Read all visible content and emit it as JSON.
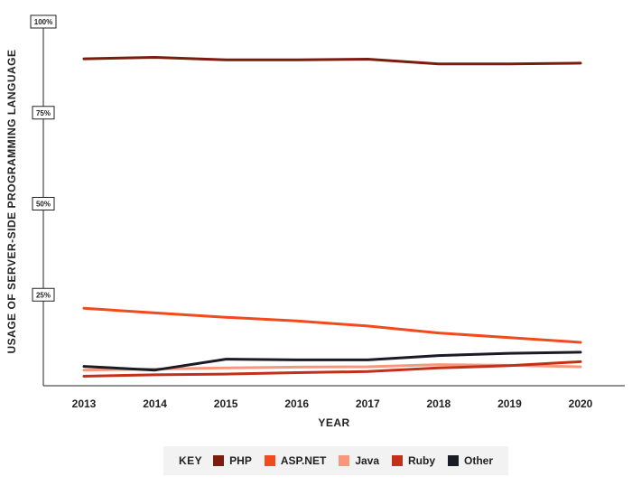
{
  "chart_data": {
    "type": "line",
    "xlabel": "YEAR",
    "ylabel": "USAGE OF SERVER-SIDE PROGRAMMING LANGUAGE",
    "x": [
      "2013",
      "2014",
      "2015",
      "2016",
      "2017",
      "2018",
      "2019",
      "2020"
    ],
    "ylim": [
      0,
      100
    ],
    "y_ticks": [
      {
        "value": 25,
        "label": "25%"
      },
      {
        "value": 50,
        "label": "50%"
      },
      {
        "value": 75,
        "label": "75%"
      },
      {
        "value": 100,
        "label": "100%"
      }
    ],
    "grid": false,
    "legend_position": "bottom",
    "legend_title": "KEY",
    "series": [
      {
        "name": "PHP",
        "color": "#7a1c0e",
        "values": [
          89.8,
          90.2,
          89.5,
          89.5,
          89.7,
          88.4,
          88.4,
          88.6
        ]
      },
      {
        "name": "ASP.NET",
        "color": "#f04a1d",
        "values": [
          21.3,
          20.0,
          18.8,
          17.8,
          16.4,
          14.5,
          13.2,
          11.9
        ]
      },
      {
        "name": "Java",
        "color": "#f7987c",
        "values": [
          4.3,
          4.6,
          4.9,
          5.1,
          5.2,
          5.8,
          5.6,
          5.2
        ]
      },
      {
        "name": "Ruby",
        "color": "#c2301a",
        "values": [
          2.6,
          3.0,
          3.2,
          3.6,
          3.9,
          4.9,
          5.5,
          6.6
        ]
      },
      {
        "name": "Other",
        "color": "#1b1b26",
        "values": [
          5.3,
          4.3,
          7.3,
          7.1,
          7.1,
          8.3,
          8.9,
          9.2
        ]
      }
    ]
  }
}
